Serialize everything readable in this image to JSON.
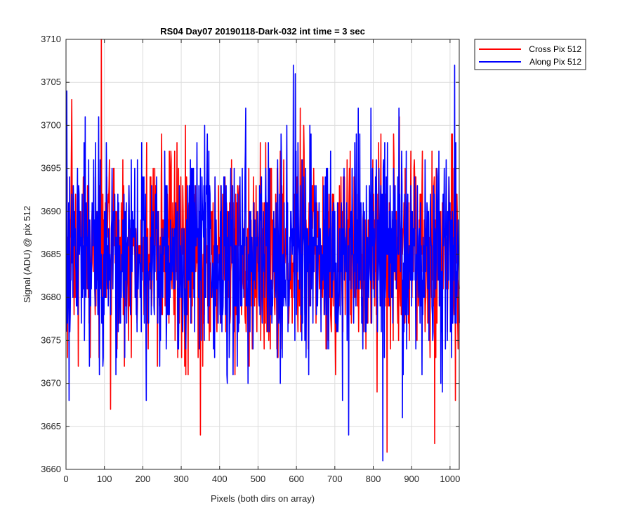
{
  "chart_data": {
    "type": "line",
    "title": "RS04 Day07 20190118-Dark-032 int time = 3 sec",
    "xlabel": "Pixels (both dirs on array)",
    "ylabel": "Signal (ADU) @ pix 512",
    "xlim": [
      0,
      1024
    ],
    "ylim": [
      3660,
      3710
    ],
    "xticks": [
      0,
      100,
      200,
      300,
      400,
      500,
      600,
      700,
      800,
      900,
      1000
    ],
    "yticks": [
      3660,
      3665,
      3670,
      3675,
      3680,
      3685,
      3690,
      3695,
      3700,
      3705,
      3710
    ],
    "grid": true,
    "legend_position": "outside-top-right",
    "series": [
      {
        "name": "Cross Pix 512",
        "color": "#ff0000",
        "x_start": 1,
        "x_step": 1,
        "count": 1024,
        "noise_model": {
          "mean": 3685,
          "sd": 6.0,
          "min": 3662,
          "max": 3710,
          "seed": 97
        }
      },
      {
        "name": "Along Pix 512",
        "color": "#0000ff",
        "x_start": 1,
        "x_step": 1,
        "count": 1024,
        "noise_model": {
          "mean": 3685,
          "sd": 6.0,
          "min": 3661,
          "max": 3707,
          "seed": 311
        }
      }
    ],
    "notable_values": [
      {
        "series": "Cross Pix 512",
        "x": 92,
        "y": 3710
      },
      {
        "series": "Cross Pix 512",
        "x": 350,
        "y": 3664
      },
      {
        "series": "Cross Pix 512",
        "x": 836,
        "y": 3662
      },
      {
        "series": "Cross Pix 512",
        "x": 960,
        "y": 3663
      },
      {
        "series": "Along Pix 512",
        "x": 2,
        "y": 3704
      },
      {
        "series": "Along Pix 512",
        "x": 597,
        "y": 3706
      },
      {
        "series": "Along Pix 512",
        "x": 1012,
        "y": 3707
      },
      {
        "series": "Along Pix 512",
        "x": 825,
        "y": 3661
      }
    ]
  }
}
